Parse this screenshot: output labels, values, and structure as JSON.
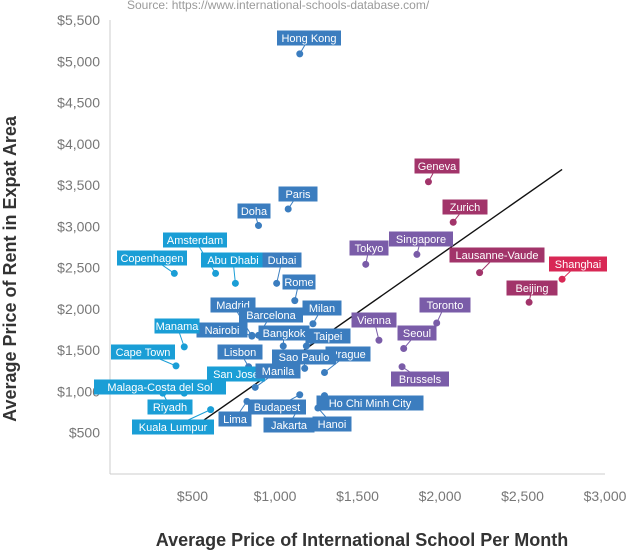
{
  "chart_data": {
    "type": "scatter",
    "title": "",
    "source": "Source: https://www.international-schools-database.com/",
    "xlabel": "Average Price of International School Per Month",
    "ylabel": "Average Price of Rent in Expat Area",
    "xlim": [
      0,
      3000
    ],
    "ylim": [
      0,
      5500
    ],
    "xticks": [
      500,
      1000,
      1500,
      2000,
      2500,
      3000
    ],
    "xtick_labels": [
      "$500",
      "$1,000",
      "$1,500",
      "$2,000",
      "$2,500",
      "$3,000"
    ],
    "yticks": [
      500,
      1000,
      1500,
      2000,
      2500,
      3000,
      3500,
      4000,
      4500,
      5000,
      5500
    ],
    "ytick_labels": [
      "$500",
      "$1,000",
      "$1,500",
      "$2,000",
      "$2,500",
      "$3,000",
      "$3,500",
      "$4,000",
      "$4,500",
      "$5,000",
      "$5,500"
    ],
    "grid": {
      "x": false,
      "y": false
    },
    "legend": "none",
    "colors": {
      "cyan": "#1a9ed6",
      "blue": "#3b7dbf",
      "violet": "#7a5ca8",
      "magenta": "#a2346a",
      "pink": "#d82855",
      "trend": "#111111",
      "axis": "#cccccc"
    },
    "trendline": {
      "x": [
        460,
        2740
      ],
      "y": [
        500,
        3690
      ]
    },
    "points": [
      {
        "name": "Hong Kong",
        "x": 1150,
        "y": 5090,
        "color": "blue"
      },
      {
        "name": "Geneva",
        "x": 1930,
        "y": 3540,
        "color": "magenta"
      },
      {
        "name": "Paris",
        "x": 1080,
        "y": 3210,
        "color": "blue"
      },
      {
        "name": "Zurich",
        "x": 2080,
        "y": 3050,
        "color": "magenta"
      },
      {
        "name": "Doha",
        "x": 900,
        "y": 3010,
        "color": "blue"
      },
      {
        "name": "Singapore",
        "x": 1860,
        "y": 2660,
        "color": "violet"
      },
      {
        "name": "Amsterdam",
        "x": 640,
        "y": 2430,
        "color": "cyan"
      },
      {
        "name": "Tokyo",
        "x": 1550,
        "y": 2540,
        "color": "violet"
      },
      {
        "name": "Copenhagen",
        "x": 390,
        "y": 2430,
        "color": "cyan"
      },
      {
        "name": "Abu Dhabi",
        "x": 760,
        "y": 2310,
        "color": "cyan"
      },
      {
        "name": "Dubai",
        "x": 1010,
        "y": 2310,
        "color": "blue"
      },
      {
        "name": "Lausanne-Vaude",
        "x": 2240,
        "y": 2440,
        "color": "magenta"
      },
      {
        "name": "Shanghai",
        "x": 2740,
        "y": 2360,
        "color": "pink"
      },
      {
        "name": "Beijing",
        "x": 2540,
        "y": 2080,
        "color": "magenta"
      },
      {
        "name": "Rome",
        "x": 1120,
        "y": 2100,
        "color": "blue"
      },
      {
        "name": "Madrid",
        "x": 860,
        "y": 1670,
        "color": "blue"
      },
      {
        "name": "Milan",
        "x": 1230,
        "y": 1820,
        "color": "blue"
      },
      {
        "name": "Barcelona",
        "x": 900,
        "y": 1680,
        "color": "blue"
      },
      {
        "name": "Toronto",
        "x": 1980,
        "y": 1830,
        "color": "violet"
      },
      {
        "name": "Vienna",
        "x": 1630,
        "y": 1620,
        "color": "violet"
      },
      {
        "name": "Nairobi",
        "x": 860,
        "y": 1680,
        "color": "blue"
      },
      {
        "name": "Bangkok",
        "x": 1050,
        "y": 1550,
        "color": "blue"
      },
      {
        "name": "Seoul",
        "x": 1780,
        "y": 1520,
        "color": "violet"
      },
      {
        "name": "Taipei",
        "x": 1190,
        "y": 1550,
        "color": "blue"
      },
      {
        "name": "Manama",
        "x": 450,
        "y": 1540,
        "color": "cyan"
      },
      {
        "name": "Cape Town",
        "x": 400,
        "y": 1310,
        "color": "cyan"
      },
      {
        "name": "Lisbon",
        "x": 840,
        "y": 1300,
        "color": "blue"
      },
      {
        "name": "Prague",
        "x": 1300,
        "y": 1230,
        "color": "blue"
      },
      {
        "name": "Sao Paulo",
        "x": 1180,
        "y": 1280,
        "color": "blue"
      },
      {
        "name": "San Jose",
        "x": 620,
        "y": 1220,
        "color": "cyan"
      },
      {
        "name": "Manila",
        "x": 880,
        "y": 1050,
        "color": "blue"
      },
      {
        "name": "Brussels",
        "x": 1770,
        "y": 1300,
        "color": "violet"
      },
      {
        "name": "Malaga-Costa del Sol",
        "x": 450,
        "y": 980,
        "color": "cyan"
      },
      {
        "name": "Riyadh",
        "x": 320,
        "y": 980,
        "color": "cyan"
      },
      {
        "name": "Budapest",
        "x": 1150,
        "y": 960,
        "color": "blue"
      },
      {
        "name": "Ho Chi Minh City",
        "x": 1300,
        "y": 950,
        "color": "blue"
      },
      {
        "name": "Lima",
        "x": 830,
        "y": 880,
        "color": "blue"
      },
      {
        "name": "Hanoi",
        "x": 1260,
        "y": 800,
        "color": "blue"
      },
      {
        "name": "Jakarta",
        "x": 1140,
        "y": 790,
        "color": "blue"
      },
      {
        "name": "Kuala Lumpur",
        "x": 610,
        "y": 780,
        "color": "cyan"
      }
    ]
  }
}
